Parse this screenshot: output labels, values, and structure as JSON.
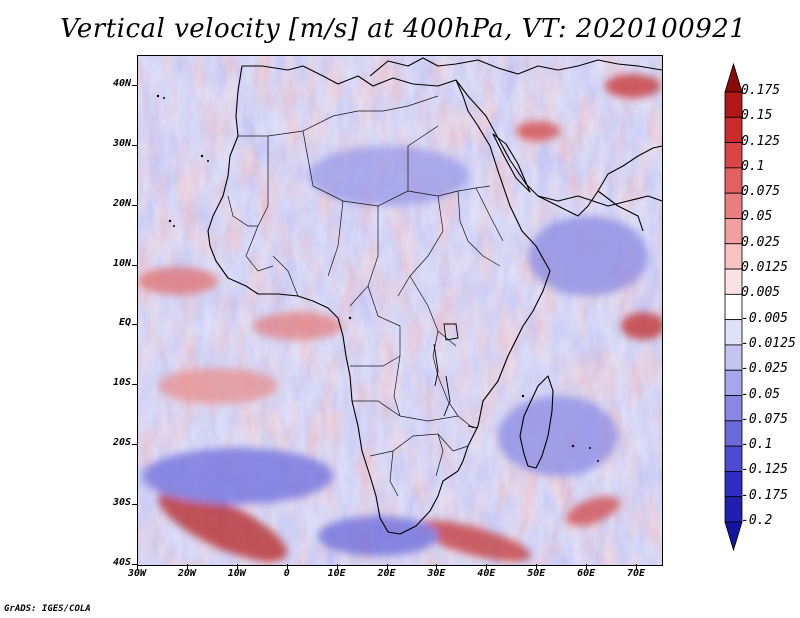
{
  "title": "Vertical velocity [m/s] at 400hPa, VT: 2020100921",
  "credit": "GrADS: IGES/COLA",
  "axes": {
    "lat_labels": [
      "40N",
      "30N",
      "20N",
      "10N",
      "EQ",
      "10S",
      "20S",
      "30S",
      "40S"
    ],
    "lon_labels": [
      "30W",
      "20W",
      "10W",
      "0",
      "10E",
      "20E",
      "30E",
      "40E",
      "50E",
      "60E",
      "70E"
    ]
  },
  "colorbar": {
    "labels": [
      "0.175",
      "0.15",
      "0.125",
      "0.1",
      "0.075",
      "0.05",
      "0.025",
      "0.0125",
      "0.005",
      "-0.005",
      "-0.0125",
      "-0.025",
      "-0.05",
      "-0.075",
      "-0.1",
      "-0.125",
      "-0.175",
      "-0.2"
    ],
    "colors": [
      "#8b0a0a",
      "#b01818",
      "#c92a2a",
      "#d94444",
      "#e26060",
      "#ea7e7e",
      "#f19f9f",
      "#f7c2c2",
      "#fbe1e1",
      "#ffffff",
      "#e0e0fa",
      "#c4c4f3",
      "#a6a6ec",
      "#8888e4",
      "#6a6adb",
      "#4c4cd2",
      "#2e2ec4",
      "#2020b0",
      "#1414a0"
    ]
  },
  "map": {
    "lon_range": [
      -30,
      75
    ],
    "lat_range": [
      -40,
      45
    ]
  }
}
